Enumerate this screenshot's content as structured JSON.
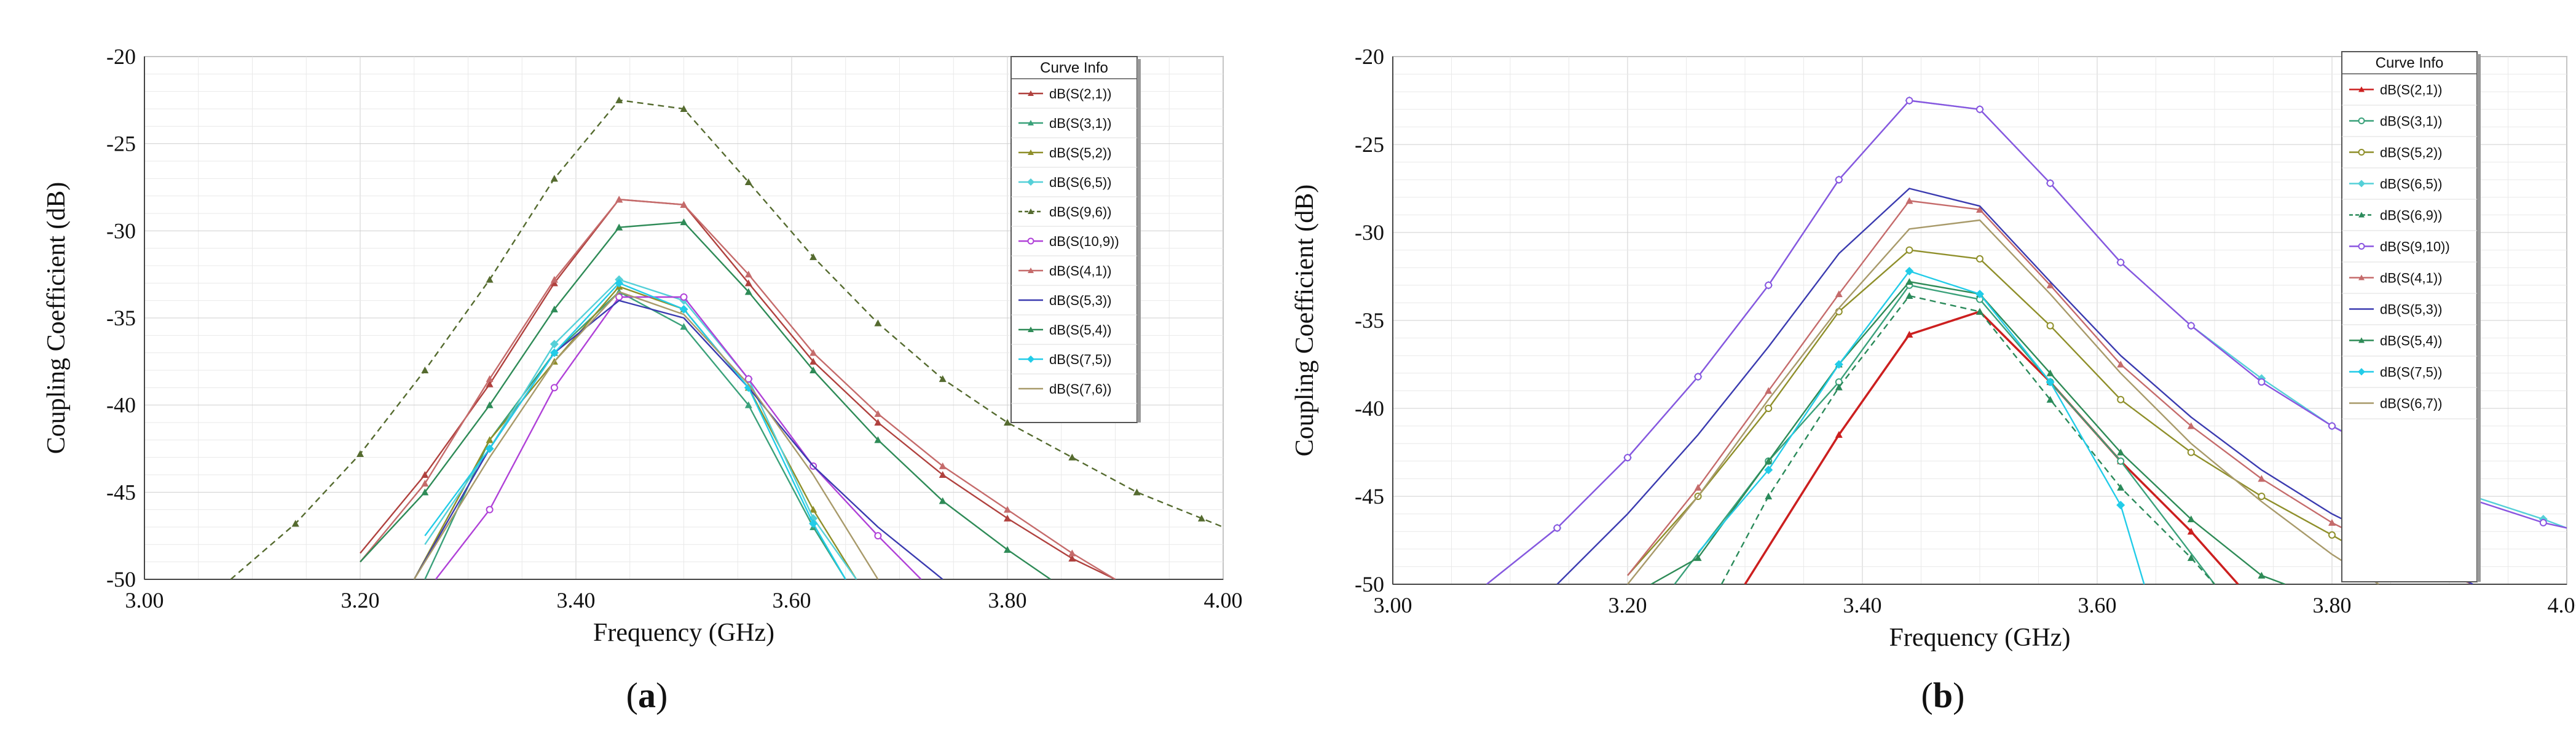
{
  "colors": {
    "S21": "#b0413e",
    "S31": "#3aa17a",
    "S52": "#8f8f2a",
    "S65": "#55d0d8",
    "S96": "#556b2f",
    "S109": "#b041d8",
    "S41": "#c56b6b",
    "S53": "#3b3bb0",
    "S54": "#2e8b57",
    "S75": "#22cce8",
    "S76": "#a89a6a",
    "S69": "#2a8a5a",
    "S910": "#8a55e0",
    "S67": "#a89a6a",
    "S21b": "#cc1f1f"
  },
  "chart_data": [
    {
      "id": "a",
      "type": "line",
      "panel_label_parts": [
        "(",
        "a",
        ")"
      ],
      "xlabel": "Frequency (GHz)",
      "ylabel": "Coupling Coefficient (dB)",
      "xlim": [
        3.0,
        4.0
      ],
      "ylim": [
        -50,
        -20
      ],
      "xticks": [
        3.0,
        3.2,
        3.4,
        3.6,
        3.8,
        4.0
      ],
      "xtick_labels": [
        "3.00",
        "3.20",
        "3.40",
        "3.60",
        "3.80",
        "4.00"
      ],
      "yticks": [
        -20,
        -25,
        -30,
        -35,
        -40,
        -45,
        -50
      ],
      "ytick_labels": [
        "-20",
        "-25",
        "-30",
        "-35",
        "-40",
        "-45",
        "-50"
      ],
      "grid": true,
      "legend": {
        "title": "Curve Info",
        "position": "top-right"
      },
      "series": [
        {
          "name": "dB(S(2,1))",
          "color_key": "S21",
          "marker": "tri",
          "x": [
            3.2,
            3.26,
            3.32,
            3.38,
            3.44,
            3.5,
            3.56,
            3.62,
            3.68,
            3.74,
            3.8,
            3.86,
            3.9
          ],
          "y": [
            -48.5,
            -44,
            -38.8,
            -33,
            -28.2,
            -28.5,
            -33,
            -37.5,
            -41,
            -44,
            -46.5,
            -48.8,
            -50
          ]
        },
        {
          "name": "dB(S(3,1))",
          "color_key": "S31",
          "marker": "tri",
          "x": [
            3.26,
            3.32,
            3.38,
            3.44,
            3.5,
            3.56,
            3.62,
            3.65
          ],
          "y": [
            -50,
            -42,
            -37,
            -33.5,
            -35.5,
            -40,
            -47,
            -50
          ]
        },
        {
          "name": "dB(S(5,2))",
          "color_key": "S52",
          "marker": "tri",
          "x": [
            3.25,
            3.32,
            3.38,
            3.44,
            3.5,
            3.56,
            3.62,
            3.66
          ],
          "y": [
            -50,
            -42,
            -37.5,
            -33.2,
            -34.5,
            -39,
            -46,
            -50
          ]
        },
        {
          "name": "dB(S(6,5))",
          "color_key": "S65",
          "marker": "diamond",
          "x": [
            3.26,
            3.32,
            3.38,
            3.44,
            3.5,
            3.56,
            3.62,
            3.66
          ],
          "y": [
            -48,
            -42.5,
            -36.5,
            -32.8,
            -34,
            -38.5,
            -46.5,
            -50
          ]
        },
        {
          "name": "dB(S(9,6))",
          "color_key": "S96",
          "marker": "tri",
          "dash": true,
          "x": [
            3.08,
            3.14,
            3.2,
            3.26,
            3.32,
            3.38,
            3.44,
            3.5,
            3.56,
            3.62,
            3.68,
            3.74,
            3.8,
            3.86,
            3.92,
            3.98,
            4.0
          ],
          "y": [
            -50,
            -46.8,
            -42.8,
            -38,
            -32.8,
            -27,
            -22.5,
            -23,
            -27.2,
            -31.5,
            -35.3,
            -38.5,
            -41,
            -43,
            -45,
            -46.5,
            -47
          ]
        },
        {
          "name": "dB(S(10,9))",
          "color_key": "S109",
          "marker": "circle",
          "x": [
            3.27,
            3.32,
            3.38,
            3.44,
            3.5,
            3.56,
            3.62,
            3.68,
            3.72
          ],
          "y": [
            -50,
            -46,
            -39,
            -33.8,
            -33.8,
            -38.5,
            -43.5,
            -47.5,
            -50
          ]
        },
        {
          "name": "dB(S(4,1))",
          "color_key": "S41",
          "marker": "tri",
          "x": [
            3.2,
            3.26,
            3.32,
            3.38,
            3.44,
            3.5,
            3.56,
            3.62,
            3.68,
            3.74,
            3.8,
            3.86,
            3.9
          ],
          "y": [
            -49,
            -44.5,
            -38.5,
            -32.8,
            -28.2,
            -28.5,
            -32.5,
            -37,
            -40.5,
            -43.5,
            -46,
            -48.5,
            -50
          ]
        },
        {
          "name": "dB(S(5,3))",
          "color_key": "S53",
          "marker": "none",
          "x": [
            3.25,
            3.32,
            3.38,
            3.44,
            3.5,
            3.56,
            3.62,
            3.68,
            3.74
          ],
          "y": [
            -50,
            -42.5,
            -37,
            -34,
            -35,
            -39,
            -43.5,
            -47,
            -50
          ]
        },
        {
          "name": "dB(S(5,4))",
          "color_key": "S54",
          "marker": "tri",
          "x": [
            3.2,
            3.26,
            3.32,
            3.38,
            3.44,
            3.5,
            3.56,
            3.62,
            3.68,
            3.74,
            3.8,
            3.84
          ],
          "y": [
            -49,
            -45,
            -40,
            -34.5,
            -29.8,
            -29.5,
            -33.5,
            -38,
            -42,
            -45.5,
            -48.3,
            -50
          ]
        },
        {
          "name": "dB(S(7,5))",
          "color_key": "S75",
          "marker": "diamond",
          "x": [
            3.26,
            3.32,
            3.38,
            3.44,
            3.5,
            3.56,
            3.62,
            3.65
          ],
          "y": [
            -47.5,
            -42.5,
            -37,
            -33,
            -34.5,
            -39,
            -46.8,
            -50
          ]
        },
        {
          "name": "dB(S(7,6))",
          "color_key": "S76",
          "marker": "none",
          "x": [
            3.25,
            3.32,
            3.38,
            3.44,
            3.5,
            3.56,
            3.62,
            3.68
          ],
          "y": [
            -50,
            -43,
            -37.5,
            -33.5,
            -34.8,
            -38.8,
            -44,
            -50
          ]
        }
      ]
    },
    {
      "id": "b",
      "type": "line",
      "panel_label_parts": [
        "(",
        "b",
        ")"
      ],
      "xlabel": "Frequency (GHz)",
      "ylabel": "Coupling Coefficient (dB)",
      "xlim": [
        3.0,
        4.0
      ],
      "ylim": [
        -50,
        -20
      ],
      "xticks": [
        3.0,
        3.2,
        3.4,
        3.6,
        3.8,
        4.0
      ],
      "xtick_labels": [
        "3.00",
        "3.20",
        "3.40",
        "3.60",
        "3.80",
        "4.00"
      ],
      "yticks": [
        -20,
        -25,
        -30,
        -35,
        -40,
        -45,
        -50
      ],
      "ytick_labels": [
        "-20",
        "-25",
        "-30",
        "-35",
        "-40",
        "-45",
        "-50"
      ],
      "grid": true,
      "legend": {
        "title": "Curve Info",
        "position": "top-right"
      },
      "series": [
        {
          "name": "dB(S(2,1))",
          "color_key": "S21b",
          "marker": "tri",
          "width": 3.5,
          "x": [
            3.3,
            3.38,
            3.44,
            3.5,
            3.56,
            3.62,
            3.68,
            3.72
          ],
          "y": [
            -50,
            -41.5,
            -35.8,
            -34.5,
            -38.5,
            -43,
            -47,
            -50
          ]
        },
        {
          "name": "dB(S(3,1))",
          "color_key": "S31",
          "marker": "circle",
          "x": [
            3.24,
            3.32,
            3.38,
            3.44,
            3.5,
            3.56,
            3.62,
            3.7
          ],
          "y": [
            -50,
            -43,
            -38.5,
            -33,
            -33.8,
            -38.5,
            -43,
            -50
          ]
        },
        {
          "name": "dB(S(5,2))",
          "color_key": "S52",
          "marker": "circle",
          "x": [
            3.2,
            3.26,
            3.32,
            3.38,
            3.44,
            3.5,
            3.56,
            3.62,
            3.68,
            3.74,
            3.8,
            3.86
          ],
          "y": [
            -49.5,
            -45,
            -40,
            -34.5,
            -31,
            -31.5,
            -35.3,
            -39.5,
            -42.5,
            -45,
            -47.2,
            -49.5
          ]
        },
        {
          "name": "dB(S(6,5))",
          "color_key": "S65",
          "marker": "diamond",
          "x": [
            3.08,
            3.14,
            3.2,
            3.26,
            3.32,
            3.38,
            3.44,
            3.5,
            3.56,
            3.62,
            3.68,
            3.74,
            3.8,
            3.86,
            3.92,
            3.98,
            4.0
          ],
          "y": [
            -50,
            -46.8,
            -42.8,
            -38.2,
            -33,
            -27,
            -22.5,
            -23,
            -27.2,
            -31.7,
            -35.3,
            -38.3,
            -41,
            -43,
            -45,
            -46.3,
            -46.8
          ]
        },
        {
          "name": "dB(S(6,9))",
          "color_key": "S69",
          "marker": "tri",
          "dash": true,
          "x": [
            3.28,
            3.32,
            3.38,
            3.44,
            3.5,
            3.56,
            3.62,
            3.68,
            3.7
          ],
          "y": [
            -50,
            -45,
            -38.8,
            -33.6,
            -34.5,
            -39.5,
            -44.5,
            -48.5,
            -50
          ]
        },
        {
          "name": "dB(S(9,10))",
          "color_key": "S910",
          "marker": "circle",
          "x": [
            3.08,
            3.14,
            3.2,
            3.26,
            3.32,
            3.38,
            3.44,
            3.5,
            3.56,
            3.62,
            3.68,
            3.74,
            3.8,
            3.86,
            3.92,
            3.98,
            4.0
          ],
          "y": [
            -50,
            -46.8,
            -42.8,
            -38.2,
            -33,
            -27,
            -22.5,
            -23,
            -27.2,
            -31.7,
            -35.3,
            -38.5,
            -41,
            -43.2,
            -45.2,
            -46.5,
            -46.8
          ]
        },
        {
          "name": "dB(S(4,1))",
          "color_key": "S41",
          "marker": "tri",
          "x": [
            3.2,
            3.26,
            3.32,
            3.38,
            3.44,
            3.5,
            3.56,
            3.62,
            3.68,
            3.74,
            3.8,
            3.86,
            3.92
          ],
          "y": [
            -49.5,
            -44.5,
            -39,
            -33.5,
            -28.2,
            -28.7,
            -33,
            -37.5,
            -41,
            -44,
            -46.5,
            -48.5,
            -50
          ]
        },
        {
          "name": "dB(S(5,3))",
          "color_key": "S53",
          "marker": "none",
          "x": [
            3.14,
            3.2,
            3.26,
            3.32,
            3.38,
            3.44,
            3.5,
            3.56,
            3.62,
            3.68,
            3.74,
            3.8,
            3.86,
            3.92
          ],
          "y": [
            -50,
            -46,
            -41.5,
            -36.5,
            -31.2,
            -27.5,
            -28.5,
            -32.8,
            -37,
            -40.5,
            -43.5,
            -46,
            -48,
            -50
          ]
        },
        {
          "name": "dB(S(5,4))",
          "color_key": "S54",
          "marker": "tri",
          "x": [
            3.22,
            3.26,
            3.32,
            3.38,
            3.44,
            3.5,
            3.56,
            3.62,
            3.68,
            3.74,
            3.76
          ],
          "y": [
            -50,
            -48.5,
            -43,
            -37.5,
            -32.8,
            -33.5,
            -38,
            -42.5,
            -46.3,
            -49.5,
            -50
          ]
        },
        {
          "name": "dB(S(7,5))",
          "color_key": "S75",
          "marker": "diamond",
          "x": [
            3.26,
            3.32,
            3.38,
            3.44,
            3.5,
            3.56,
            3.62,
            3.64
          ],
          "y": [
            -48.2,
            -43.5,
            -37.5,
            -32.2,
            -33.5,
            -38.5,
            -45.5,
            -50
          ]
        },
        {
          "name": "dB(S(6,7))",
          "color_key": "S67",
          "marker": "none",
          "x": [
            3.2,
            3.26,
            3.32,
            3.38,
            3.44,
            3.5,
            3.56,
            3.62,
            3.68,
            3.74,
            3.8,
            3.84
          ],
          "y": [
            -50,
            -45,
            -39.5,
            -34.3,
            -29.8,
            -29.3,
            -33.5,
            -38,
            -42,
            -45.3,
            -48.3,
            -50
          ]
        }
      ]
    }
  ]
}
